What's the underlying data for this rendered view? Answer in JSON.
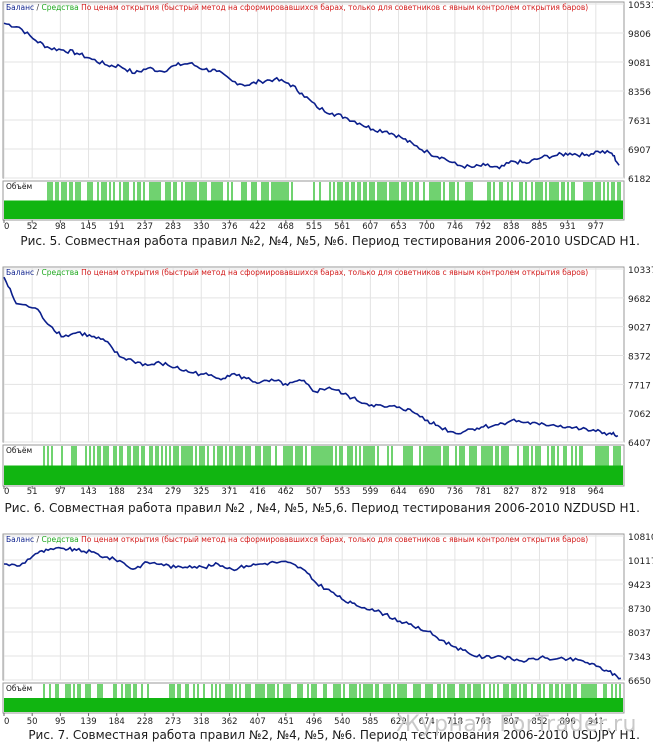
{
  "legend": {
    "balance": "Баланс",
    "sep": " / ",
    "equity": "Средства",
    "note": "По ценам открытия (быстрый метод на сформировавшихся барах, только для советников с явным контролем открытия баров)"
  },
  "volume_label": "Объём",
  "colors": {
    "balance": "#0b1f8c",
    "equity": "#1fa81f",
    "volume": "#11b511",
    "note": "#d21a1a",
    "grid": "#e3e3e3",
    "frame": "#9a9a9a"
  },
  "watermark": "Журнал ForTrader.ru",
  "chart_data": [
    {
      "type": "line",
      "caption": "Рис. 5. Совместная работа правил №2, №4, №5, №6. Период тестирования 2006-2010 USDCAD H1.",
      "x_ticks": [
        "0",
        "52",
        "98",
        "145",
        "191",
        "237",
        "283",
        "330",
        "376",
        "422",
        "468",
        "515",
        "561",
        "607",
        "653",
        "700",
        "746",
        "792",
        "838",
        "885",
        "931",
        "977"
      ],
      "y_ticks": [
        "10531",
        "9806",
        "9081",
        "8356",
        "7631",
        "6907",
        "6182"
      ],
      "ylim": [
        6182,
        10531
      ],
      "xlim": [
        0,
        1020
      ],
      "series": [
        {
          "name": "Баланс",
          "x": [
            0,
            25,
            52,
            75,
            98,
            120,
            145,
            170,
            191,
            215,
            237,
            260,
            283,
            305,
            330,
            350,
            376,
            400,
            422,
            445,
            468,
            490,
            515,
            540,
            561,
            585,
            607,
            630,
            653,
            675,
            700,
            720,
            746,
            770,
            792,
            815,
            838,
            860,
            885,
            910,
            931,
            955,
            977,
            1000,
            1012
          ],
          "values": [
            10050,
            9950,
            9620,
            9430,
            9380,
            9300,
            9150,
            9000,
            8980,
            8800,
            8930,
            8850,
            9000,
            9050,
            8900,
            8850,
            8600,
            8500,
            8600,
            8650,
            8550,
            8300,
            7950,
            7800,
            7700,
            7550,
            7400,
            7350,
            7200,
            7000,
            6800,
            6700,
            6500,
            6450,
            6500,
            6420,
            6600,
            6550,
            6700,
            6750,
            6800,
            6750,
            6850,
            6800,
            6500
          ]
        }
      ],
      "volume": [
        0.0,
        0.0,
        0.1,
        0.95,
        0.0,
        0.4
      ]
    },
    {
      "type": "line",
      "caption": "Рис. 6. Совместная работа правил №2 , №4, №5, №5,6. Период тестирования 2006-2010 NZDUSD H1.",
      "x_ticks": [
        "0",
        "51",
        "97",
        "143",
        "188",
        "234",
        "279",
        "325",
        "371",
        "416",
        "462",
        "507",
        "553",
        "599",
        "644",
        "690",
        "736",
        "781",
        "827",
        "872",
        "918",
        "964"
      ],
      "y_ticks": [
        "10337",
        "9682",
        "9027",
        "8372",
        "7717",
        "7062",
        "6407"
      ],
      "ylim": [
        6407,
        10337
      ],
      "xlim": [
        0,
        1010
      ],
      "series": [
        {
          "name": "Баланс",
          "x": [
            0,
            20,
            51,
            75,
            97,
            120,
            143,
            165,
            188,
            210,
            234,
            255,
            279,
            300,
            325,
            350,
            371,
            395,
            416,
            440,
            462,
            485,
            507,
            530,
            553,
            575,
            599,
            620,
            644,
            665,
            690,
            710,
            736,
            760,
            781,
            805,
            827,
            850,
            872,
            895,
            918,
            940,
            964,
            985,
            1000
          ],
          "values": [
            10150,
            9550,
            9450,
            9050,
            8800,
            8900,
            8800,
            8700,
            8350,
            8250,
            8150,
            8200,
            8100,
            8000,
            7950,
            7850,
            7950,
            7850,
            7750,
            7800,
            7700,
            7800,
            7550,
            7650,
            7500,
            7350,
            7250,
            7200,
            7200,
            7100,
            6900,
            6750,
            6600,
            6700,
            6750,
            6800,
            6900,
            6850,
            6800,
            6800,
            6750,
            6700,
            6650,
            6600,
            6550
          ]
        }
      ]
    },
    {
      "type": "line",
      "caption": "Рис. 7. Совместная работа правил №2, №4, №5, №6. Период тестирования 2006-2010 USDJPY H1.",
      "x_ticks": [
        "0",
        "50",
        "95",
        "139",
        "184",
        "228",
        "273",
        "318",
        "362",
        "407",
        "451",
        "496",
        "540",
        "585",
        "629",
        "674",
        "718",
        "763",
        "807",
        "852",
        "896",
        "941"
      ],
      "y_ticks": [
        "10810",
        "10117",
        "9423",
        "8730",
        "8037",
        "7343",
        "6650"
      ],
      "ylim": [
        6650,
        10810
      ],
      "xlim": [
        0,
        985
      ],
      "series": [
        {
          "name": "Баланс",
          "x": [
            0,
            25,
            50,
            70,
            95,
            115,
            139,
            160,
            184,
            205,
            228,
            250,
            273,
            295,
            318,
            340,
            362,
            385,
            407,
            430,
            451,
            475,
            496,
            520,
            540,
            560,
            585,
            605,
            629,
            650,
            674,
            695,
            718,
            740,
            763,
            785,
            807,
            830,
            852,
            875,
            896,
            920,
            941,
            960,
            980
          ],
          "values": [
            10000,
            9950,
            10300,
            10400,
            10450,
            10400,
            10350,
            10200,
            10100,
            9850,
            10050,
            10000,
            9900,
            9950,
            9900,
            10000,
            9850,
            9950,
            10000,
            10050,
            10050,
            9850,
            9450,
            9200,
            8950,
            8800,
            8700,
            8550,
            8350,
            8200,
            8050,
            7800,
            7600,
            7400,
            7300,
            7350,
            7250,
            7200,
            7300,
            7250,
            7250,
            7200,
            7050,
            6900,
            6700
          ]
        }
      ]
    }
  ]
}
